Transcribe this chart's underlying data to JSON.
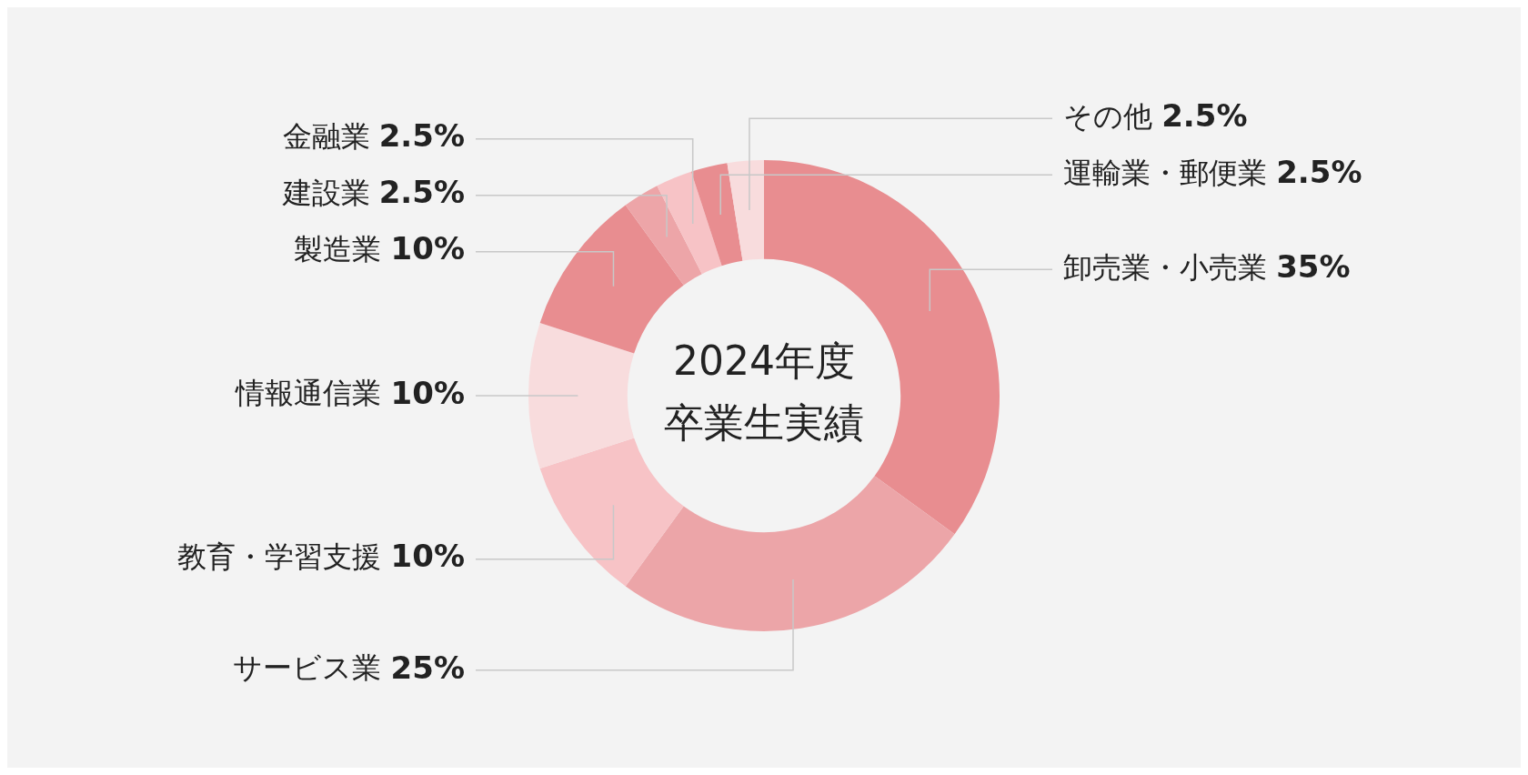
{
  "chart_data": {
    "type": "donut",
    "title": "2024年度卒業生実績",
    "categories": [
      "卸売業・小売業",
      "サービス業",
      "教育・学習支援",
      "情報通信業",
      "製造業",
      "建設業",
      "金融業",
      "運輸業・郵便業",
      "その他"
    ],
    "values": [
      35,
      25,
      10,
      10,
      10,
      2.5,
      2.5,
      2.5,
      2.5
    ],
    "value_labels": [
      "35%",
      "25%",
      "10%",
      "10%",
      "10%",
      "2.5%",
      "2.5%",
      "2.5%",
      "2.5%"
    ],
    "colors": [
      "#e88d90",
      "#eca5a8",
      "#f7c3c6",
      "#f8dcdd",
      "#e88d90",
      "#eda5a8",
      "#f7c3c6",
      "#e88d90",
      "#f8dcdd"
    ],
    "legend": false
  }
}
